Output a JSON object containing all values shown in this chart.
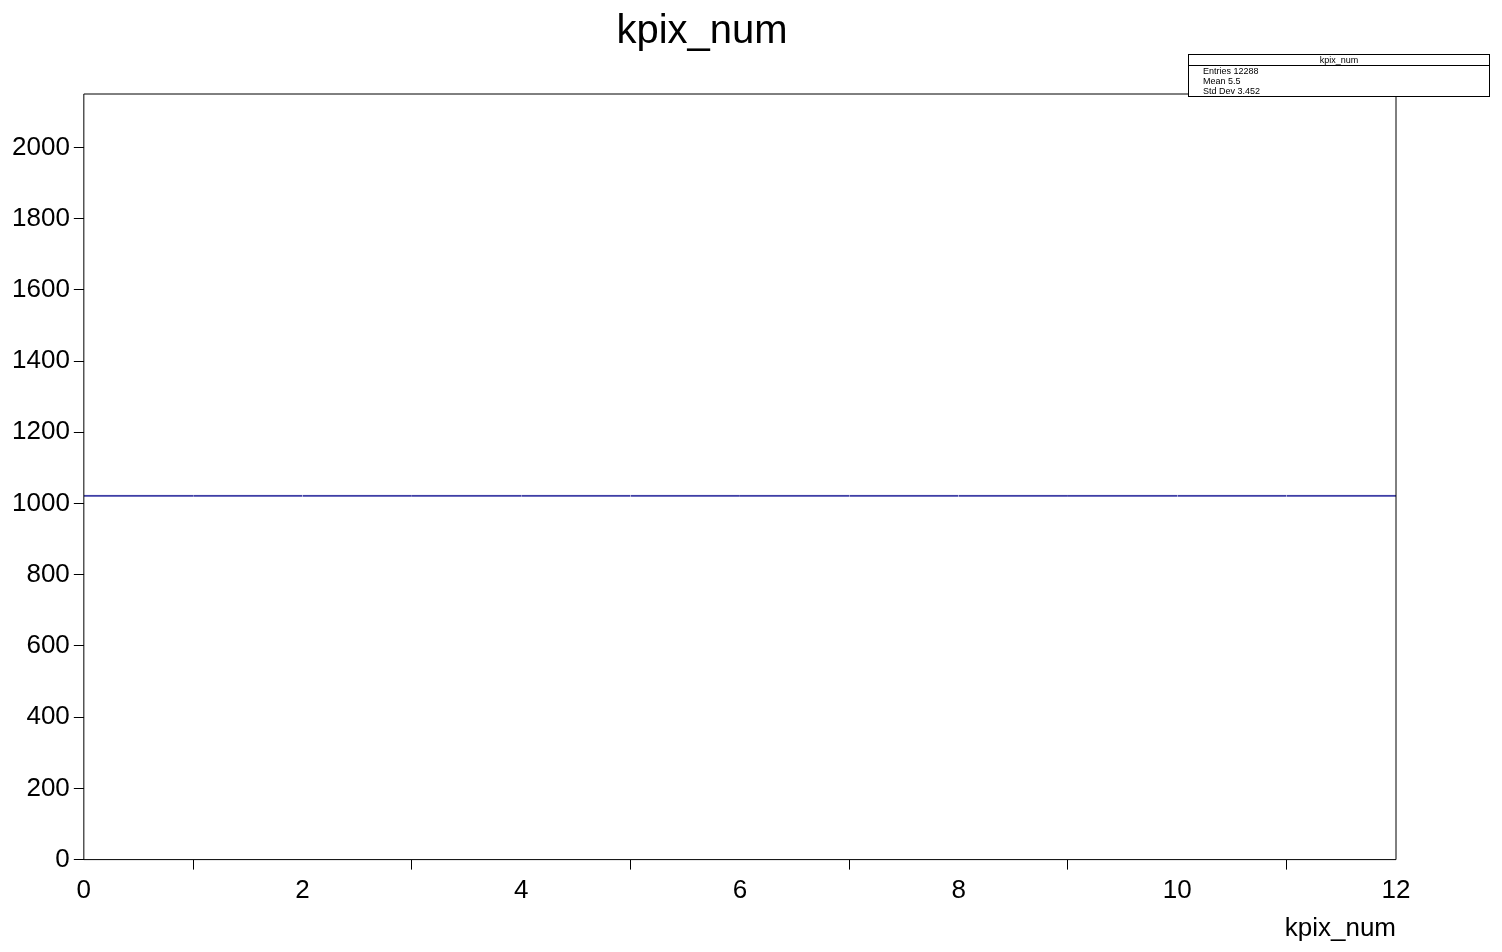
{
  "chart_data": {
    "type": "histogram",
    "title": "kpix_num",
    "xlabel": "kpix_num",
    "bins": [
      0,
      1,
      2,
      3,
      4,
      5,
      6,
      7,
      8,
      9,
      10,
      11,
      12
    ],
    "values": [
      1024,
      1024,
      1024,
      1024,
      1024,
      1024,
      1024,
      1024,
      1024,
      1024,
      1024,
      1024
    ],
    "color": "#3f3fa6",
    "xlim": [
      0,
      12
    ],
    "xticks": [
      0,
      2,
      4,
      6,
      8,
      10,
      12
    ],
    "ylim": [
      0,
      2150
    ],
    "yticks": [
      0,
      200,
      400,
      600,
      800,
      1000,
      1200,
      1400,
      1600,
      1800,
      2000
    ],
    "grid": false,
    "legend": false,
    "annotations": [
      "kpix_num",
      "Entries 12288",
      "Mean 5.5",
      "Std Dev 3.452"
    ]
  }
}
